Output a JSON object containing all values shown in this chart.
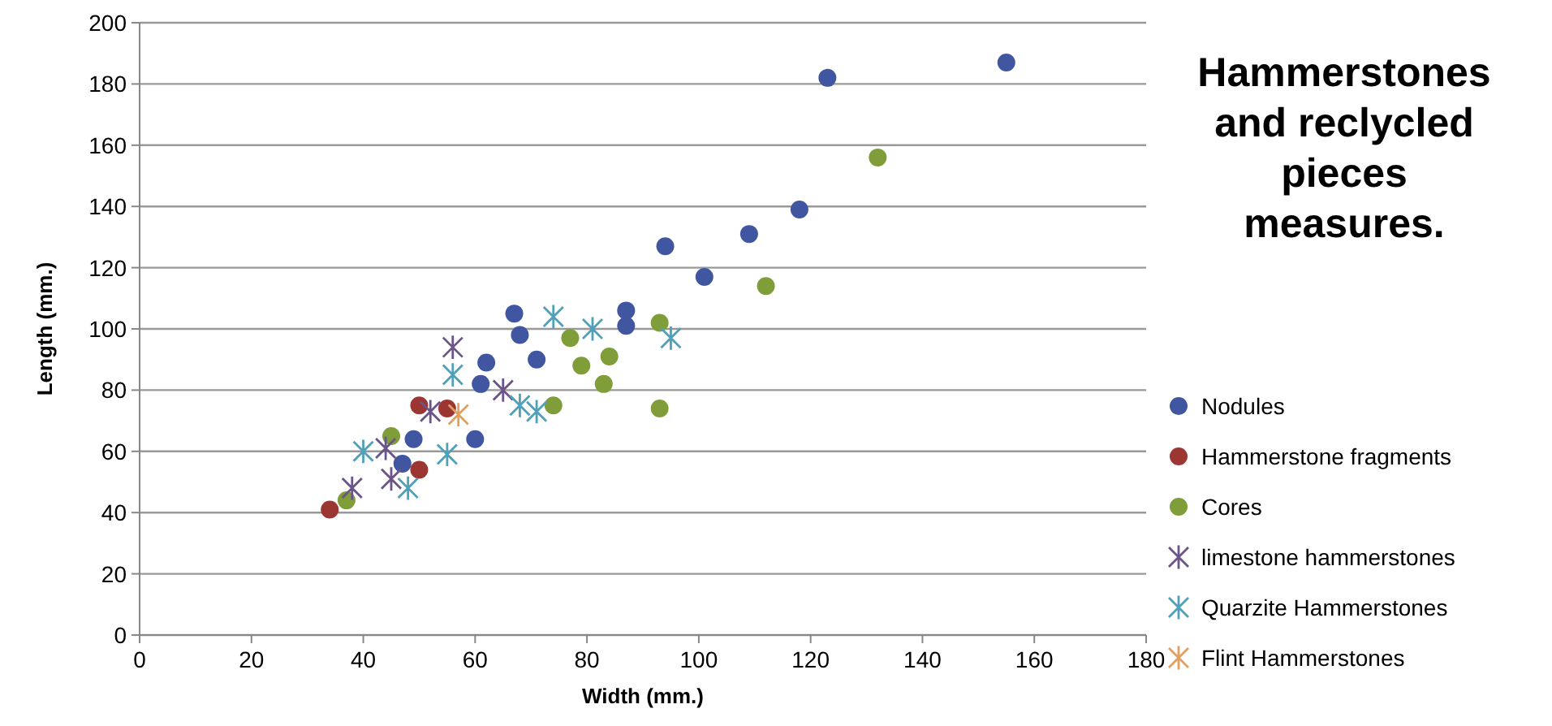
{
  "chart_data": {
    "type": "scatter",
    "title": "Hammerstones and reclycled pieces measures.",
    "xlabel": "Width (mm.)",
    "ylabel": "Length (mm.)",
    "xlim": [
      0,
      180
    ],
    "xticks": [
      0,
      20,
      40,
      60,
      80,
      100,
      120,
      140,
      160,
      180
    ],
    "ylim": [
      0,
      200
    ],
    "yticks": [
      0,
      20,
      40,
      60,
      80,
      100,
      120,
      140,
      160,
      180,
      200
    ],
    "grid": "y",
    "legend": "right",
    "series": [
      {
        "name": "Nodules",
        "color": "#4056a1",
        "marker": "circle",
        "x": [
          155,
          123,
          118,
          109,
          94,
          101,
          87,
          87,
          67,
          68,
          71,
          62,
          61,
          60,
          49,
          47
        ],
        "values": [
          187,
          182,
          139,
          131,
          127,
          117,
          106,
          101,
          105,
          98,
          90,
          89,
          82,
          64,
          64,
          56
        ]
      },
      {
        "name": "Hammerstone fragments",
        "color": "#9b3633",
        "marker": "circle",
        "x": [
          34,
          50,
          55,
          50
        ],
        "values": [
          41,
          75,
          74,
          54
        ]
      },
      {
        "name": "Cores",
        "color": "#7f9e3a",
        "marker": "circle",
        "x": [
          37,
          45,
          132,
          112,
          93,
          77,
          84,
          79,
          83,
          74,
          93
        ],
        "values": [
          44,
          65,
          156,
          114,
          102,
          97,
          91,
          88,
          82,
          75,
          74
        ]
      },
      {
        "name": "limestone hammerstones",
        "color": "#6a5488",
        "marker": "cross",
        "x": [
          38,
          44,
          45,
          56,
          52,
          65
        ],
        "values": [
          48,
          61,
          51,
          94,
          73,
          80
        ]
      },
      {
        "name": "Quarzite Hammerstones",
        "color": "#4fa0b8",
        "marker": "cross",
        "x": [
          40,
          48,
          56,
          55,
          68,
          71,
          74,
          81,
          95
        ],
        "values": [
          60,
          48,
          85,
          59,
          75,
          73,
          104,
          100,
          97
        ]
      },
      {
        "name": "Flint Hammerstones",
        "color": "#e0a060",
        "marker": "cross",
        "x": [
          57
        ],
        "values": [
          72
        ]
      }
    ]
  }
}
